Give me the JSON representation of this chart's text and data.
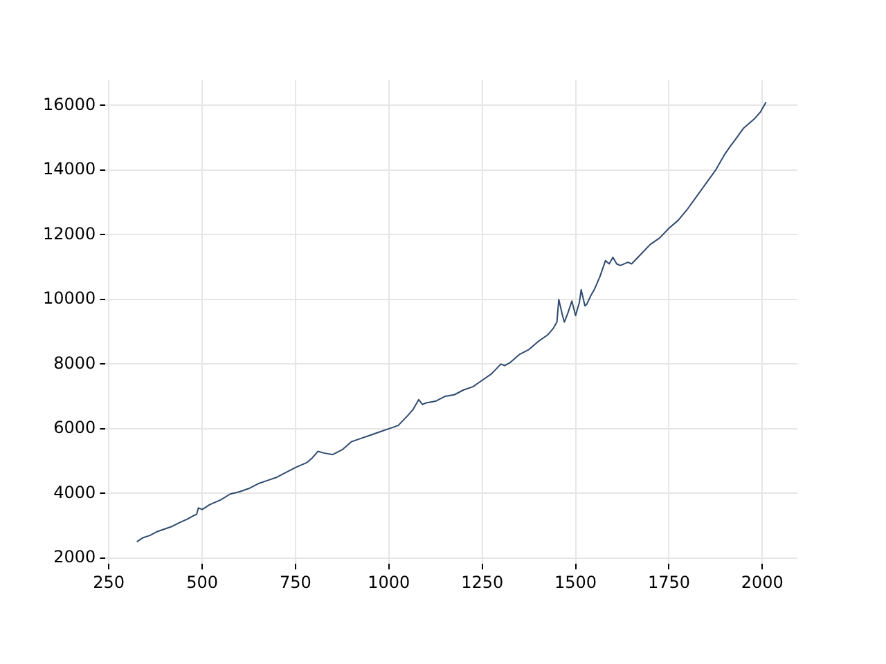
{
  "chart_data": {
    "type": "line",
    "x": [
      325,
      340,
      360,
      380,
      400,
      420,
      440,
      460,
      475,
      485,
      490,
      500,
      520,
      550,
      575,
      600,
      625,
      650,
      675,
      700,
      725,
      750,
      780,
      795,
      810,
      825,
      850,
      875,
      900,
      925,
      950,
      975,
      1000,
      1025,
      1050,
      1065,
      1080,
      1090,
      1100,
      1125,
      1150,
      1175,
      1200,
      1225,
      1250,
      1275,
      1300,
      1310,
      1325,
      1350,
      1375,
      1400,
      1425,
      1440,
      1450,
      1455,
      1465,
      1470,
      1480,
      1490,
      1500,
      1510,
      1515,
      1525,
      1530,
      1540,
      1550,
      1565,
      1580,
      1590,
      1600,
      1610,
      1620,
      1640,
      1650,
      1675,
      1700,
      1725,
      1750,
      1775,
      1800,
      1825,
      1850,
      1875,
      1900,
      1915,
      1925,
      1950,
      1965,
      1980,
      1995,
      2010
    ],
    "series": [
      {
        "color": "#2e4a6e",
        "values": [
          2500,
          2620,
          2700,
          2820,
          2900,
          2980,
          3100,
          3200,
          3300,
          3350,
          3550,
          3500,
          3650,
          3800,
          3980,
          4050,
          4150,
          4300,
          4400,
          4500,
          4650,
          4800,
          4950,
          5100,
          5300,
          5250,
          5200,
          5350,
          5600,
          5700,
          5800,
          5900,
          6000,
          6100,
          6400,
          6600,
          6900,
          6750,
          6800,
          6850,
          7000,
          7050,
          7200,
          7300,
          7500,
          7700,
          8000,
          7950,
          8050,
          8300,
          8450,
          8700,
          8900,
          9100,
          9300,
          10000,
          9500,
          9300,
          9600,
          9950,
          9500,
          9900,
          10300,
          9800,
          9850,
          10100,
          10300,
          10700,
          11200,
          11100,
          11300,
          11100,
          11050,
          11150,
          11100,
          11400,
          11700,
          11900,
          12200,
          12450,
          12800,
          13200,
          13600,
          14000,
          14500,
          14750,
          14900,
          15300,
          15450,
          15600,
          15800,
          16100
        ]
      }
    ],
    "xlim": [
      241,
      2094
    ],
    "ylim": [
      1820,
      16780
    ],
    "xticks": [
      250,
      500,
      750,
      1000,
      1250,
      1500,
      1750,
      2000
    ],
    "yticks": [
      2000,
      4000,
      6000,
      8000,
      10000,
      12000,
      14000,
      16000
    ],
    "grid": true
  }
}
